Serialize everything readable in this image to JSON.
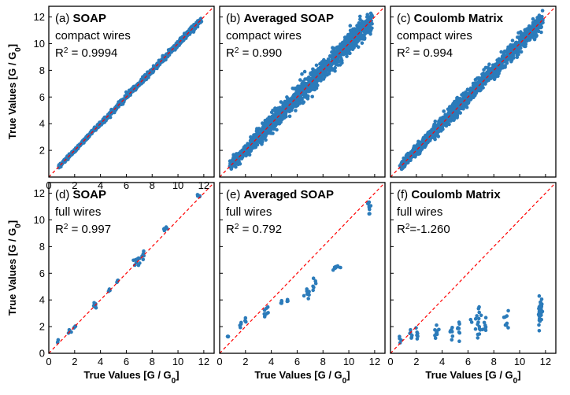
{
  "figure": {
    "xlabel": "True Values [G / G0]",
    "ylabel": "True Values [G / G0]",
    "point_color": "#2b7bba",
    "diagonal_color": "#ff0000"
  },
  "chart_data": [
    {
      "type": "scatter",
      "panel_letter": "(a)",
      "method": "SOAP",
      "dataset": "compact wires",
      "r2_label": "R² = 0.9994",
      "xlabel": "",
      "ylabel": "True Values [G / G0]",
      "xlim": [
        0,
        12.8
      ],
      "ylim": [
        0,
        12.8
      ],
      "xticks": [
        0,
        2,
        4,
        6,
        8,
        10,
        12
      ],
      "yticks": [
        2,
        4,
        6,
        8,
        10,
        12
      ],
      "diagonal": true,
      "spread": 0.07,
      "n_points": 900,
      "x_range": [
        0.8,
        11.8
      ]
    },
    {
      "type": "scatter",
      "panel_letter": "(b)",
      "method": "Averaged SOAP",
      "dataset": "compact wires",
      "r2_label": "R² = 0.990",
      "xlabel": "",
      "ylabel": "",
      "xlim": [
        0,
        12.8
      ],
      "ylim": [
        0,
        12.8
      ],
      "diagonal": true,
      "spread": 0.28,
      "n_points": 1400,
      "x_range": [
        0.8,
        11.8
      ]
    },
    {
      "type": "scatter",
      "panel_letter": "(c)",
      "method": "Coulomb Matrix",
      "dataset": "compact wires",
      "r2_label": "R² = 0.994",
      "xlabel": "",
      "ylabel": "",
      "xlim": [
        0,
        12.8
      ],
      "ylim": [
        0,
        12.8
      ],
      "diagonal": true,
      "spread": 0.22,
      "n_points": 1400,
      "x_range": [
        0.8,
        11.8
      ]
    },
    {
      "type": "scatter",
      "panel_letter": "(d)",
      "method": "SOAP",
      "dataset": "full wires",
      "r2_label": "R² = 0.997",
      "xlabel": "True Values [G / G0]",
      "ylabel": "True Values [G / G0]",
      "xlim": [
        0,
        12.8
      ],
      "ylim": [
        0,
        12.8
      ],
      "xticks": [
        0,
        2,
        4,
        6,
        8,
        10,
        12
      ],
      "yticks": [
        0,
        2,
        4,
        6,
        8,
        10,
        12
      ],
      "diagonal": true,
      "clusters": [
        {
          "x": 0.7,
          "y": 0.9,
          "sx": 0.05,
          "sy": 0.08,
          "n": 3
        },
        {
          "x": 1.6,
          "y": 1.6,
          "sx": 0.05,
          "sy": 0.1,
          "n": 4
        },
        {
          "x": 2.0,
          "y": 2.0,
          "sx": 0.05,
          "sy": 0.1,
          "n": 5
        },
        {
          "x": 3.6,
          "y": 3.6,
          "sx": 0.08,
          "sy": 0.1,
          "n": 8
        },
        {
          "x": 4.7,
          "y": 4.7,
          "sx": 0.05,
          "sy": 0.08,
          "n": 4
        },
        {
          "x": 5.3,
          "y": 5.4,
          "sx": 0.05,
          "sy": 0.08,
          "n": 4
        },
        {
          "x": 6.8,
          "y": 7.0,
          "sx": 0.15,
          "sy": 0.2,
          "n": 10
        },
        {
          "x": 7.3,
          "y": 7.4,
          "sx": 0.1,
          "sy": 0.15,
          "n": 6
        },
        {
          "x": 9.0,
          "y": 9.3,
          "sx": 0.08,
          "sy": 0.1,
          "n": 6
        },
        {
          "x": 11.6,
          "y": 11.8,
          "sx": 0.08,
          "sy": 0.05,
          "n": 8
        }
      ]
    },
    {
      "type": "scatter",
      "panel_letter": "(e)",
      "method": "Averaged SOAP",
      "dataset": "full wires",
      "r2_label": "R² = 0.792",
      "xlabel": "True Values [G / G0]",
      "ylabel": "",
      "xlim": [
        0,
        12.8
      ],
      "ylim": [
        0,
        12.8
      ],
      "xticks": [
        0,
        2,
        4,
        6,
        8,
        10,
        12
      ],
      "diagonal": true,
      "clusters": [
        {
          "x": 0.7,
          "y": 1.2,
          "sx": 0.05,
          "sy": 0.08,
          "n": 3
        },
        {
          "x": 1.6,
          "y": 2.1,
          "sx": 0.05,
          "sy": 0.1,
          "n": 4
        },
        {
          "x": 2.0,
          "y": 2.4,
          "sx": 0.05,
          "sy": 0.1,
          "n": 4
        },
        {
          "x": 3.6,
          "y": 3.1,
          "sx": 0.1,
          "sy": 0.2,
          "n": 8
        },
        {
          "x": 4.7,
          "y": 3.8,
          "sx": 0.06,
          "sy": 0.08,
          "n": 4
        },
        {
          "x": 5.3,
          "y": 4.0,
          "sx": 0.06,
          "sy": 0.1,
          "n": 4
        },
        {
          "x": 6.8,
          "y": 4.4,
          "sx": 0.12,
          "sy": 0.2,
          "n": 10
        },
        {
          "x": 7.3,
          "y": 5.0,
          "sx": 0.1,
          "sy": 0.3,
          "n": 6
        },
        {
          "x": 9.0,
          "y": 6.4,
          "sx": 0.1,
          "sy": 0.08,
          "n": 8
        },
        {
          "x": 11.6,
          "y": 11.0,
          "sx": 0.05,
          "sy": 0.35,
          "n": 10
        }
      ]
    },
    {
      "type": "scatter",
      "panel_letter": "(f)",
      "method": "Coulomb Matrix",
      "dataset": "full wires",
      "r2_label": "R²=-1.260",
      "xlabel": "True Values [G / G0]",
      "ylabel": "",
      "xlim": [
        0,
        12.8
      ],
      "ylim": [
        0,
        12.8
      ],
      "xticks": [
        0,
        2,
        4,
        6,
        8,
        10,
        12
      ],
      "diagonal": true,
      "clusters": [
        {
          "x": 0.7,
          "y": 1.1,
          "sx": 0.06,
          "sy": 0.15,
          "n": 4
        },
        {
          "x": 1.6,
          "y": 1.6,
          "sx": 0.06,
          "sy": 0.25,
          "n": 6
        },
        {
          "x": 2.0,
          "y": 1.5,
          "sx": 0.06,
          "sy": 0.3,
          "n": 6
        },
        {
          "x": 3.6,
          "y": 1.4,
          "sx": 0.12,
          "sy": 0.25,
          "n": 10
        },
        {
          "x": 4.7,
          "y": 1.6,
          "sx": 0.08,
          "sy": 0.4,
          "n": 8
        },
        {
          "x": 5.3,
          "y": 1.8,
          "sx": 0.08,
          "sy": 0.45,
          "n": 8
        },
        {
          "x": 6.8,
          "y": 2.1,
          "sx": 0.2,
          "sy": 0.55,
          "n": 18
        },
        {
          "x": 7.3,
          "y": 1.9,
          "sx": 0.1,
          "sy": 0.45,
          "n": 8
        },
        {
          "x": 9.0,
          "y": 2.2,
          "sx": 0.1,
          "sy": 0.3,
          "n": 8
        },
        {
          "x": 11.6,
          "y": 3.1,
          "sx": 0.1,
          "sy": 0.7,
          "n": 30
        }
      ]
    }
  ]
}
